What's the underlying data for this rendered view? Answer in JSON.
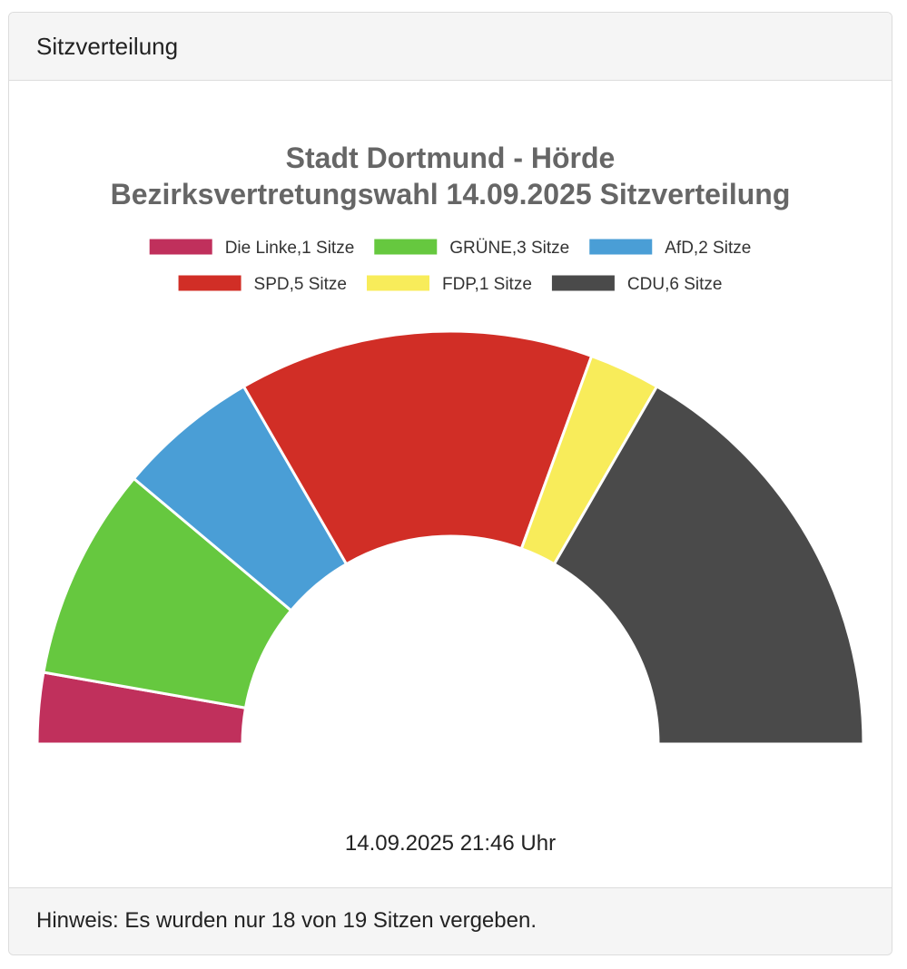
{
  "panel": {
    "header_title": "Sitzverteilung",
    "timestamp": "14.09.2025 21:46 Uhr",
    "footer_note": "Hinweis: Es wurden nur 18 von 19 Sitzen vergeben."
  },
  "chart_data": {
    "type": "pie",
    "subtype": "semicircle-donut",
    "title_lines": [
      "Stadt Dortmund - Hörde",
      "Bezirksvertretungswahl 14.09.2025 Sitzverteilung"
    ],
    "legend_position": "top",
    "categories": [
      "Die Linke",
      "GRÜNE",
      "AfD",
      "SPD",
      "FDP",
      "CDU"
    ],
    "values": [
      1,
      3,
      2,
      5,
      1,
      6
    ],
    "legend_labels": [
      "Die Linke,1 Sitze",
      "GRÜNE,3 Sitze",
      "AfD,2 Sitze",
      "SPD,5 Sitze",
      "FDP,1 Sitze",
      "CDU,6 Sitze"
    ],
    "colors": [
      "#c0305c",
      "#66c83f",
      "#4a9ed6",
      "#d12e26",
      "#f8ec5a",
      "#4a4a4a"
    ],
    "total_seats": 18
  }
}
